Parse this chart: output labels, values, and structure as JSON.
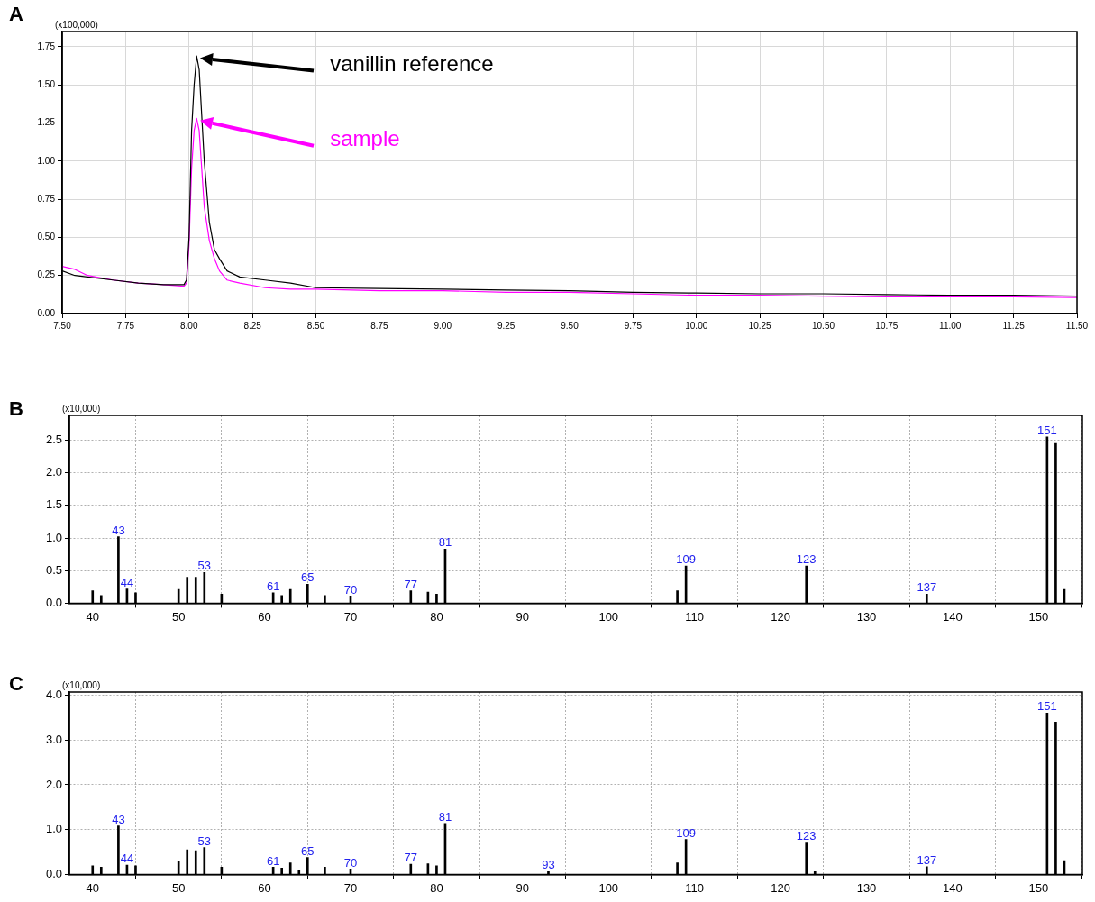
{
  "chart_data": [
    {
      "type": "line",
      "title": "A",
      "annotations": [
        "(x100,000)"
      ],
      "marker": "none",
      "grid": true,
      "legend": "top left",
      "xlim": [
        7.5,
        11.5
      ],
      "xticks": [
        {
          "value": 7.5,
          "label": "7.50"
        },
        {
          "value": 7.75,
          "label": "7.75"
        },
        {
          "value": 8,
          "label": "8.00"
        },
        {
          "value": 8.25,
          "label": "8.25"
        },
        {
          "value": 8.5,
          "label": "8.50"
        },
        {
          "value": 8.75,
          "label": "8.75"
        },
        {
          "value": 9,
          "label": "9.00"
        },
        {
          "value": 9.25,
          "label": "9.25"
        },
        {
          "value": 9.5,
          "label": "9.50"
        },
        {
          "value": 9.75,
          "label": "9.75"
        },
        {
          "value": 10,
          "label": "10.00"
        },
        {
          "value": 10.25,
          "label": "10.25"
        },
        {
          "value": 10.5,
          "label": "10.50"
        },
        {
          "value": 10.75,
          "label": "10.75"
        },
        {
          "value": 11,
          "label": "11.00"
        },
        {
          "value": 11.25,
          "label": "11.25"
        },
        {
          "value": 11.5,
          "label": "11.50"
        }
      ],
      "ylim": [
        0,
        1.85
      ],
      "yticks": [
        {
          "value": 0,
          "label": "0.00"
        },
        {
          "value": 0.25,
          "label": "0.25"
        },
        {
          "value": 0.5,
          "label": "0.50"
        },
        {
          "value": 0.75,
          "label": "0.75"
        },
        {
          "value": 1,
          "label": "1.00"
        },
        {
          "value": 1.25,
          "label": "1.25"
        },
        {
          "value": 1.5,
          "label": "1.50"
        },
        {
          "value": 1.75,
          "label": "1.75"
        }
      ],
      "series": [
        {
          "name": "vanillin reference",
          "color": "#000000",
          "x": [
            7.5,
            7.55,
            7.6,
            7.7,
            7.8,
            7.9,
            7.98,
            7.99,
            8.0,
            8.01,
            8.02,
            8.03,
            8.04,
            8.05,
            8.06,
            8.08,
            8.1,
            8.12,
            8.15,
            8.2,
            8.3,
            8.4,
            8.5,
            8.75,
            9.0,
            9.25,
            9.5,
            9.75,
            10.0,
            10.25,
            10.5,
            10.75,
            11.0,
            11.25,
            11.5
          ],
          "values": [
            0.28,
            0.25,
            0.24,
            0.22,
            0.2,
            0.19,
            0.19,
            0.22,
            0.5,
            1.2,
            1.5,
            1.69,
            1.6,
            1.3,
            1.0,
            0.6,
            0.42,
            0.36,
            0.28,
            0.24,
            0.22,
            0.2,
            0.17,
            0.165,
            0.16,
            0.155,
            0.15,
            0.14,
            0.135,
            0.13,
            0.13,
            0.125,
            0.12,
            0.12,
            0.115
          ]
        },
        {
          "name": "sample",
          "color": "#ff00ff",
          "x": [
            7.5,
            7.55,
            7.6,
            7.7,
            7.8,
            7.9,
            7.98,
            7.99,
            8.0,
            8.01,
            8.02,
            8.03,
            8.04,
            8.05,
            8.06,
            8.08,
            8.1,
            8.12,
            8.15,
            8.2,
            8.3,
            8.4,
            8.5,
            8.75,
            9.0,
            9.25,
            9.5,
            9.75,
            10.0,
            10.25,
            10.5,
            10.75,
            11.0,
            11.25,
            11.5
          ],
          "values": [
            0.31,
            0.29,
            0.25,
            0.22,
            0.2,
            0.19,
            0.18,
            0.2,
            0.45,
            0.95,
            1.2,
            1.28,
            1.2,
            0.95,
            0.7,
            0.48,
            0.36,
            0.28,
            0.22,
            0.2,
            0.17,
            0.16,
            0.16,
            0.15,
            0.15,
            0.14,
            0.14,
            0.13,
            0.12,
            0.12,
            0.115,
            0.11,
            0.11,
            0.11,
            0.105
          ]
        }
      ]
    },
    {
      "type": "bar",
      "title": "B",
      "grid": true,
      "color": "#000000",
      "annotations": [
        "(x10,000)",
        {
          "text": "43",
          "x": 43,
          "y": 1.02
        },
        {
          "text": "44",
          "x": 44,
          "y": 0.22
        },
        {
          "text": "53",
          "x": 53,
          "y": 0.47
        },
        {
          "text": "61",
          "x": 61,
          "y": 0.16
        },
        {
          "text": "65",
          "x": 65,
          "y": 0.29
        },
        {
          "text": "70",
          "x": 70,
          "y": 0.11
        },
        {
          "text": "77",
          "x": 77,
          "y": 0.19
        },
        {
          "text": "81",
          "x": 81,
          "y": 0.83
        },
        {
          "text": "109",
          "x": 109,
          "y": 0.57
        },
        {
          "text": "123",
          "x": 123,
          "y": 0.57
        },
        {
          "text": "137",
          "x": 137,
          "y": 0.14
        },
        {
          "text": "151",
          "x": 151,
          "y": 2.55
        }
      ],
      "x": [
        40,
        41,
        43,
        44,
        45,
        50,
        51,
        52,
        53,
        55,
        61,
        62,
        63,
        65,
        67,
        70,
        77,
        79,
        80,
        81,
        108,
        109,
        123,
        137,
        151,
        152,
        153
      ],
      "values": [
        0.19,
        0.12,
        1.02,
        0.22,
        0.16,
        0.21,
        0.4,
        0.4,
        0.47,
        0.14,
        0.16,
        0.12,
        0.21,
        0.29,
        0.12,
        0.11,
        0.19,
        0.17,
        0.14,
        0.83,
        0.19,
        0.57,
        0.57,
        0.14,
        2.55,
        2.45,
        0.21
      ],
      "xlim": [
        37.3,
        155.1
      ],
      "xticks": [
        40,
        50,
        60,
        70,
        80,
        90,
        100,
        110,
        120,
        130,
        140,
        150
      ],
      "ylim": [
        0,
        2.88
      ],
      "yticks": [
        {
          "value": 0,
          "label": "0.0"
        },
        {
          "value": 0.5,
          "label": "0.5"
        },
        {
          "value": 1,
          "label": "1.0"
        },
        {
          "value": 1.5,
          "label": "1.5"
        },
        {
          "value": 2,
          "label": "2.0"
        },
        {
          "value": 2.5,
          "label": "2.5"
        }
      ]
    },
    {
      "type": "bar",
      "title": "C",
      "grid": true,
      "color": "#000000",
      "annotations": [
        "(x10,000)",
        {
          "text": "43",
          "x": 43,
          "y": 1.08
        },
        {
          "text": "44",
          "x": 44,
          "y": 0.21
        },
        {
          "text": "53",
          "x": 53,
          "y": 0.6
        },
        {
          "text": "61",
          "x": 61,
          "y": 0.16
        },
        {
          "text": "65",
          "x": 65,
          "y": 0.38
        },
        {
          "text": "70",
          "x": 70,
          "y": 0.12
        },
        {
          "text": "77",
          "x": 77,
          "y": 0.23
        },
        {
          "text": "81",
          "x": 81,
          "y": 1.14
        },
        {
          "text": "93",
          "x": 93,
          "y": 0.06
        },
        {
          "text": "109",
          "x": 109,
          "y": 0.78
        },
        {
          "text": "123",
          "x": 123,
          "y": 0.72
        },
        {
          "text": "137",
          "x": 137,
          "y": 0.17
        },
        {
          "text": "151",
          "x": 151,
          "y": 3.6
        }
      ],
      "x": [
        40,
        41,
        43,
        44,
        45,
        50,
        51,
        52,
        53,
        55,
        61,
        62,
        63,
        64,
        65,
        67,
        70,
        77,
        79,
        80,
        81,
        93,
        108,
        109,
        123,
        124,
        137,
        151,
        152,
        153
      ],
      "values": [
        0.19,
        0.16,
        1.08,
        0.21,
        0.19,
        0.29,
        0.55,
        0.53,
        0.6,
        0.16,
        0.16,
        0.14,
        0.26,
        0.09,
        0.38,
        0.16,
        0.12,
        0.23,
        0.24,
        0.19,
        1.14,
        0.06,
        0.26,
        0.78,
        0.72,
        0.06,
        0.17,
        3.6,
        3.4,
        0.31
      ],
      "xlim": [
        37.3,
        155.1
      ],
      "xticks": [
        40,
        50,
        60,
        70,
        80,
        90,
        100,
        110,
        120,
        130,
        140,
        150
      ],
      "ylim": [
        0,
        4.07
      ],
      "yticks": [
        {
          "value": 0,
          "label": "0.0"
        },
        {
          "value": 1,
          "label": "1.0"
        },
        {
          "value": 2,
          "label": "2.0"
        },
        {
          "value": 3,
          "label": "3.0"
        },
        {
          "value": 4,
          "label": "4.0"
        }
      ]
    }
  ]
}
